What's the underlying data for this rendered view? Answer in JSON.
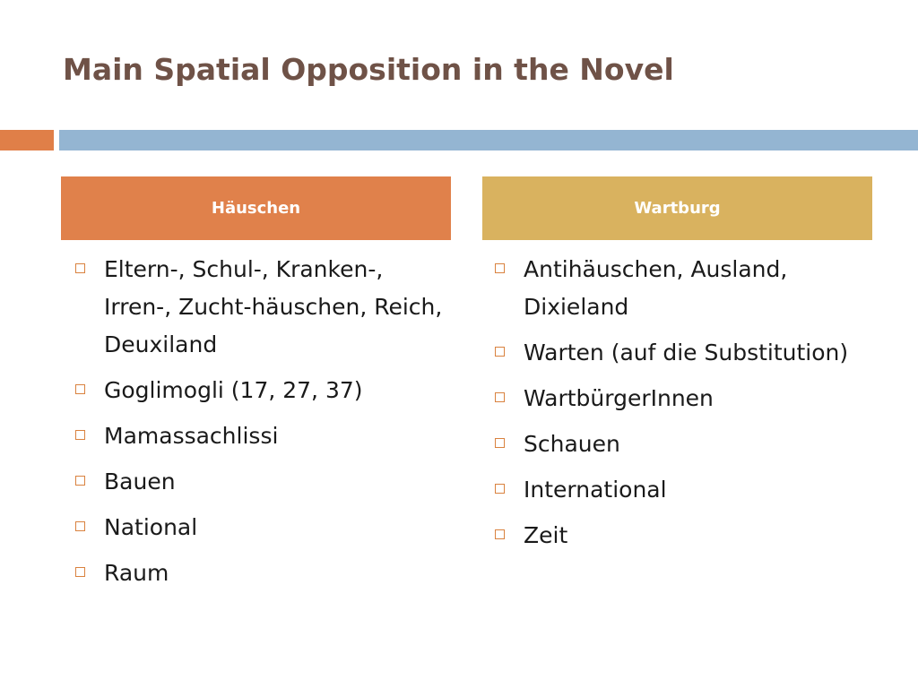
{
  "title": "Main Spatial Opposition in the Novel",
  "colors": {
    "title": "#6f5247",
    "accent_orange": "#e07f48",
    "accent_blue": "#94b5d2",
    "left_header_bg": "#e0814b",
    "right_header_bg": "#d9b25f",
    "bullet_box": "#d9823f"
  },
  "left_column": {
    "header": "Häuschen",
    "items": [
      "Eltern-, Schul-, Kranken-, Irren-, Zucht-häuschen, Reich, Deuxiland",
      "Goglimogli (17, 27, 37)",
      "Mamassachlissi",
      "Bauen",
      "National",
      "Raum"
    ]
  },
  "right_column": {
    "header": "Wartburg",
    "items": [
      "Antihäuschen, Ausland, Dixieland",
      "Warten (auf die Substitution)",
      "WartbürgerInnen",
      "Schauen",
      "International",
      "Zeit"
    ]
  }
}
